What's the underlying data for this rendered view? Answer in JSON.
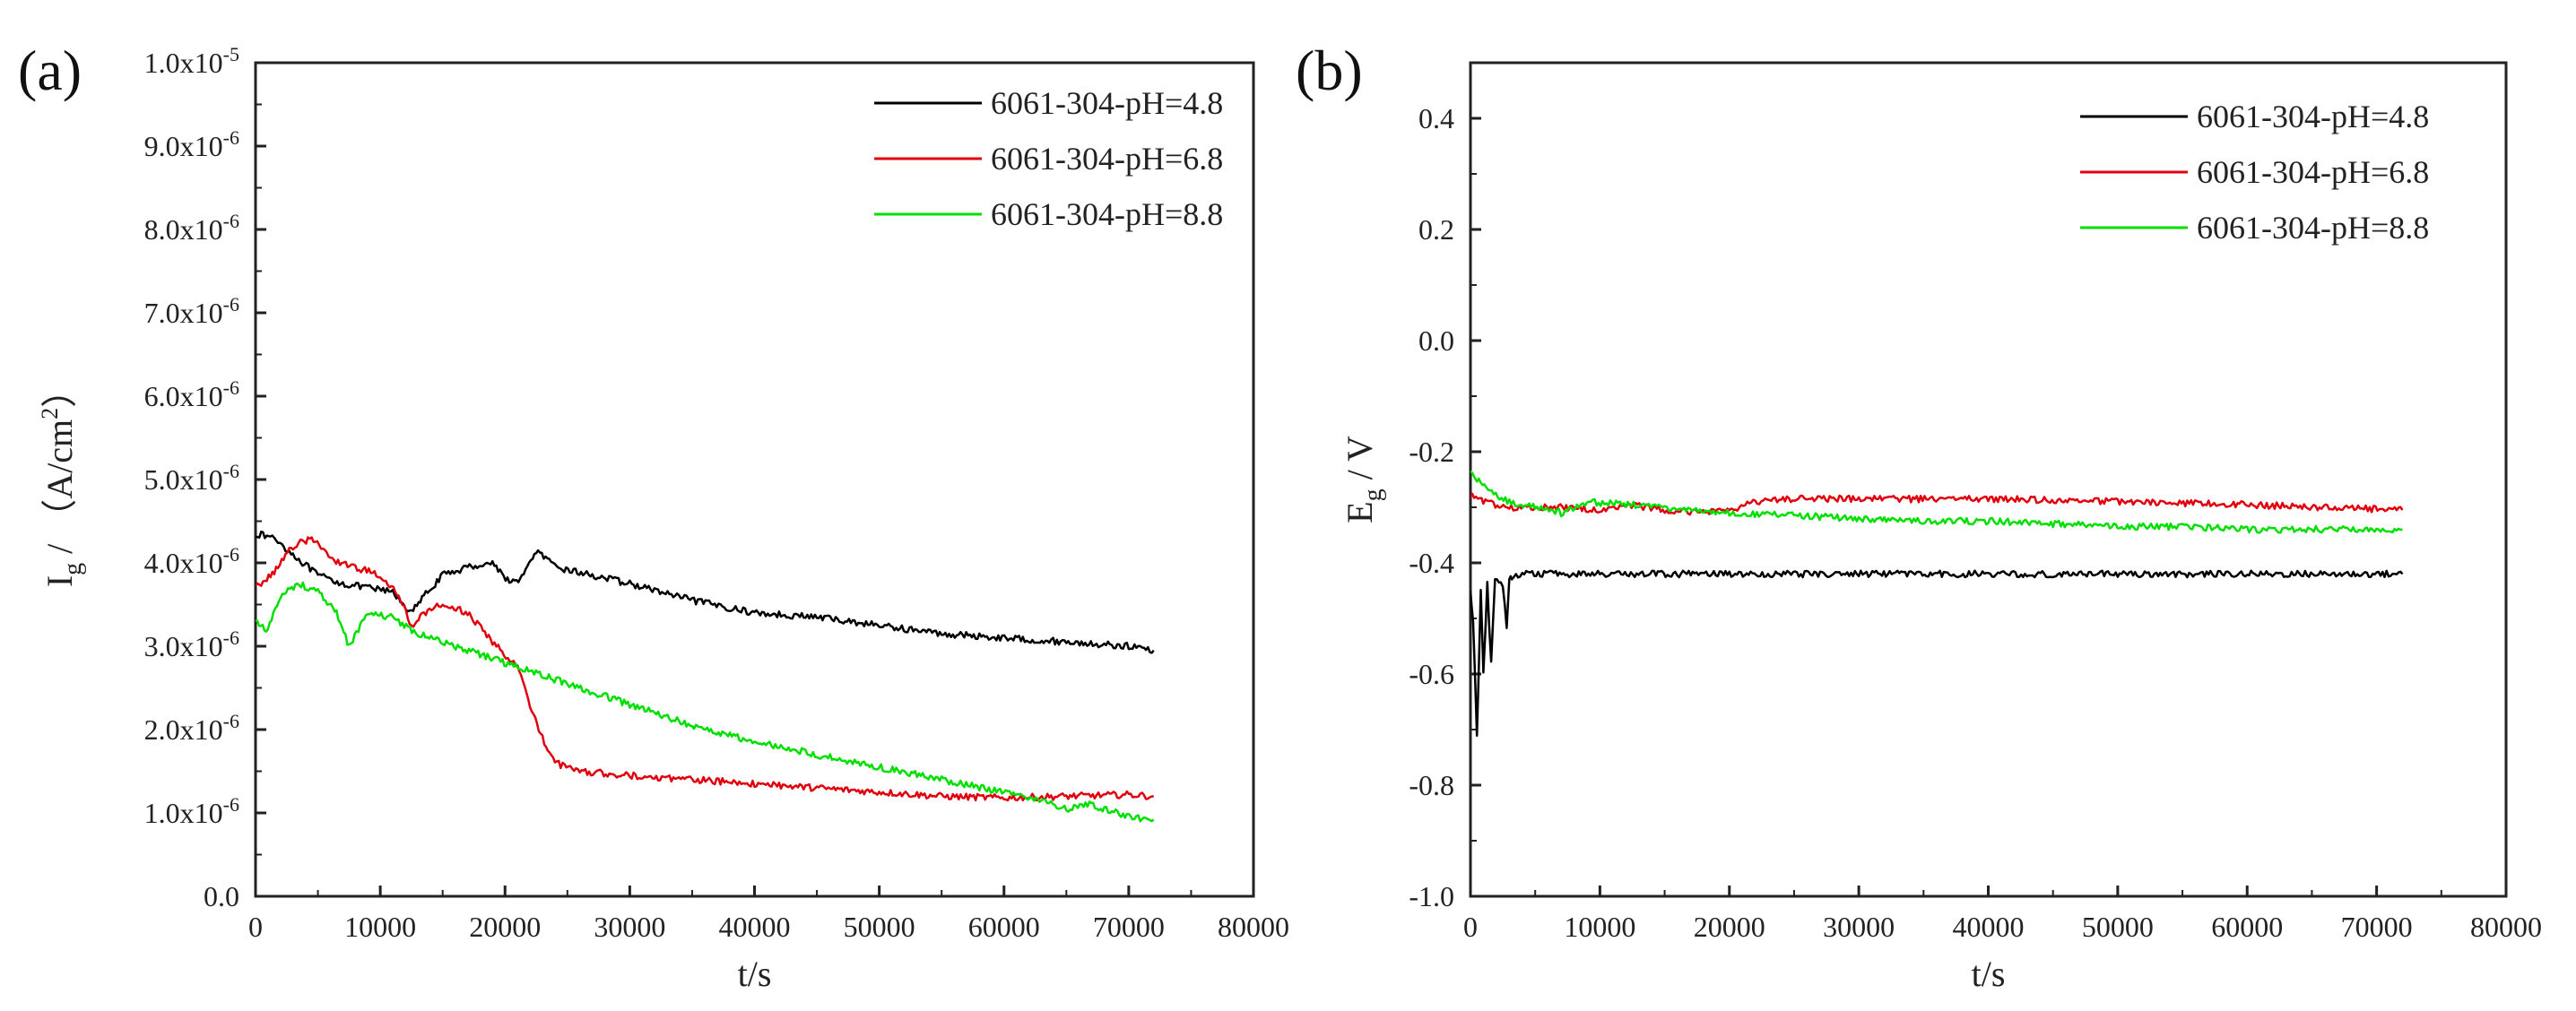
{
  "panels": [
    {
      "label": "(a)"
    },
    {
      "label": "(b)"
    }
  ],
  "chart_data": [
    {
      "type": "line",
      "panel_label": "(a)",
      "xlabel": "t/s",
      "ylabel": "I_g / (A/cm^2)",
      "ylabel_parts": {
        "main": "I",
        "sub": "g",
        "rest": " / （A/cm",
        "sup": "2",
        "end": "）"
      },
      "xlim": [
        0,
        80000
      ],
      "ylim": [
        0,
        1e-05
      ],
      "x_ticks": [
        0,
        10000,
        20000,
        30000,
        40000,
        50000,
        60000,
        70000,
        80000
      ],
      "x_tick_labels": [
        "0",
        "10000",
        "20000",
        "30000",
        "40000",
        "50000",
        "60000",
        "70000",
        "80000"
      ],
      "y_ticks": [
        0,
        1e-06,
        2e-06,
        3e-06,
        4e-06,
        5e-06,
        6e-06,
        7e-06,
        8e-06,
        9e-06,
        1e-05
      ],
      "y_tick_labels": [
        {
          "text": "0.0",
          "mant": "0.0",
          "exp": ""
        },
        {
          "text": "1.0x10-6",
          "mant": "1.0x10",
          "exp": "-6"
        },
        {
          "text": "2.0x10-6",
          "mant": "2.0x10",
          "exp": "-6"
        },
        {
          "text": "3.0x10-6",
          "mant": "3.0x10",
          "exp": "-6"
        },
        {
          "text": "4.0x10-6",
          "mant": "4.0x10",
          "exp": "-6"
        },
        {
          "text": "5.0x10-6",
          "mant": "5.0x10",
          "exp": "-6"
        },
        {
          "text": "6.0x10-6",
          "mant": "6.0x10",
          "exp": "-6"
        },
        {
          "text": "7.0x10-6",
          "mant": "7.0x10",
          "exp": "-6"
        },
        {
          "text": "8.0x10-6",
          "mant": "8.0x10",
          "exp": "-6"
        },
        {
          "text": "9.0x10-6",
          "mant": "9.0x10",
          "exp": "-6"
        },
        {
          "text": "1.0x10-5",
          "mant": "1.0x10",
          "exp": "-5"
        }
      ],
      "legend_position": "top-right",
      "grid": false,
      "series": [
        {
          "name": "6061-304-pH=4.8",
          "color": "#000000",
          "x": [
            0,
            1500,
            3000,
            5000,
            7000,
            9000,
            11000,
            12500,
            13500,
            15000,
            17000,
            19000,
            20500,
            21500,
            22500,
            24000,
            27000,
            30000,
            35000,
            40000,
            45000,
            50000,
            55000,
            60000,
            65000,
            70000,
            72000
          ],
          "y": [
            4.35e-06,
            4.3e-06,
            4.1e-06,
            3.85e-06,
            3.75e-06,
            3.7e-06,
            3.65e-06,
            3.4e-06,
            3.6e-06,
            3.85e-06,
            3.95e-06,
            4e-06,
            3.75e-06,
            3.85e-06,
            4.15e-06,
            3.95e-06,
            3.85e-06,
            3.75e-06,
            3.55e-06,
            3.4e-06,
            3.35e-06,
            3.25e-06,
            3.15e-06,
            3.1e-06,
            3.05e-06,
            3e-06,
            2.95e-06
          ]
        },
        {
          "name": "6061-304-pH=6.8",
          "color": "#e0000e",
          "x": [
            0,
            1500,
            3000,
            4500,
            6000,
            8000,
            10000,
            11500,
            12500,
            13500,
            15000,
            17000,
            19000,
            21000,
            22000,
            23000,
            24000,
            26000,
            30000,
            35000,
            40000,
            45000,
            50000,
            55000,
            60000,
            65000,
            70000,
            72000
          ],
          "y": [
            3.7e-06,
            3.9e-06,
            4.2e-06,
            4.3e-06,
            4.05e-06,
            3.95e-06,
            3.85e-06,
            3.6e-06,
            3.25e-06,
            3.4e-06,
            3.5e-06,
            3.4e-06,
            3.05e-06,
            2.75e-06,
            2.3e-06,
            1.9e-06,
            1.6e-06,
            1.5e-06,
            1.45e-06,
            1.4e-06,
            1.35e-06,
            1.3e-06,
            1.25e-06,
            1.2e-06,
            1.18e-06,
            1.2e-06,
            1.22e-06,
            1.2e-06
          ]
        },
        {
          "name": "6061-304-pH=8.8",
          "color": "#00e000",
          "x": [
            0,
            1000,
            2000,
            3500,
            5000,
            6500,
            7500,
            9000,
            11000,
            13000,
            15000,
            18000,
            21000,
            25000,
            30000,
            35000,
            40000,
            45000,
            50000,
            55000,
            60000,
            63000,
            65000,
            67000,
            70000,
            72000
          ],
          "y": [
            3.3e-06,
            3.2e-06,
            3.6e-06,
            3.75e-06,
            3.65e-06,
            3.4e-06,
            3e-06,
            3.4e-06,
            3.35e-06,
            3.15e-06,
            3.05e-06,
            2.9e-06,
            2.75e-06,
            2.55e-06,
            2.3e-06,
            2.05e-06,
            1.85e-06,
            1.7e-06,
            1.55e-06,
            1.4e-06,
            1.25e-06,
            1.15e-06,
            1.05e-06,
            1.1e-06,
            9.5e-07,
            9.2e-07
          ]
        }
      ]
    },
    {
      "type": "line",
      "panel_label": "(b)",
      "xlabel": "t/s",
      "ylabel": "E_g / V",
      "ylabel_parts": {
        "main": "E",
        "sub": "g",
        "rest": " / V"
      },
      "xlim": [
        0,
        80000
      ],
      "ylim": [
        -1.0,
        0.5
      ],
      "x_ticks": [
        0,
        10000,
        20000,
        30000,
        40000,
        50000,
        60000,
        70000,
        80000
      ],
      "x_tick_labels": [
        "0",
        "10000",
        "20000",
        "30000",
        "40000",
        "50000",
        "60000",
        "70000",
        "80000"
      ],
      "y_ticks": [
        -1.0,
        -0.8,
        -0.6,
        -0.4,
        -0.2,
        0.0,
        0.2,
        0.4
      ],
      "y_tick_labels": [
        {
          "text": "-1.0",
          "mant": "-1.0",
          "exp": ""
        },
        {
          "text": "-0.8",
          "mant": "-0.8",
          "exp": ""
        },
        {
          "text": "-0.6",
          "mant": "-0.6",
          "exp": ""
        },
        {
          "text": "-0.4",
          "mant": "-0.4",
          "exp": ""
        },
        {
          "text": "-0.2",
          "mant": "-0.2",
          "exp": ""
        },
        {
          "text": "0.0",
          "mant": "0.0",
          "exp": ""
        },
        {
          "text": "0.2",
          "mant": "0.2",
          "exp": ""
        },
        {
          "text": "0.4",
          "mant": "0.4",
          "exp": ""
        }
      ],
      "legend_position": "top-right",
      "grid": false,
      "series": [
        {
          "name": "6061-304-pH=4.8",
          "color": "#000000",
          "x": [
            0,
            200,
            500,
            800,
            1000,
            1300,
            1600,
            1900,
            2200,
            2500,
            2800,
            3000,
            3200,
            4000,
            6000,
            10000,
            20000,
            30000,
            40000,
            50000,
            60000,
            70000,
            72000
          ],
          "y": [
            -0.45,
            -0.5,
            -0.71,
            -0.45,
            -0.6,
            -0.44,
            -0.58,
            -0.43,
            -0.43,
            -0.44,
            -0.52,
            -0.43,
            -0.43,
            -0.42,
            -0.42,
            -0.42,
            -0.42,
            -0.42,
            -0.42,
            -0.42,
            -0.42,
            -0.42,
            -0.42
          ]
        },
        {
          "name": "6061-304-pH=6.8",
          "color": "#e0000e",
          "x": [
            0,
            1000,
            3000,
            5000,
            8000,
            10000,
            12000,
            15000,
            18000,
            20000,
            22000,
            24000,
            30000,
            40000,
            50000,
            60000,
            65000,
            72000
          ],
          "y": [
            -0.28,
            -0.29,
            -0.3,
            -0.3,
            -0.3,
            -0.305,
            -0.295,
            -0.305,
            -0.31,
            -0.305,
            -0.29,
            -0.285,
            -0.285,
            -0.285,
            -0.29,
            -0.295,
            -0.3,
            -0.305
          ]
        },
        {
          "name": "6061-304-pH=8.8",
          "color": "#00e000",
          "x": [
            0,
            500,
            1500,
            3000,
            5000,
            7000,
            9000,
            12000,
            15000,
            20000,
            25000,
            30000,
            35000,
            40000,
            45000,
            50000,
            55000,
            60000,
            65000,
            70000,
            72000
          ],
          "y": [
            -0.24,
            -0.25,
            -0.27,
            -0.29,
            -0.3,
            -0.31,
            -0.29,
            -0.295,
            -0.3,
            -0.31,
            -0.315,
            -0.32,
            -0.325,
            -0.325,
            -0.33,
            -0.335,
            -0.335,
            -0.34,
            -0.34,
            -0.34,
            -0.34
          ]
        }
      ]
    }
  ]
}
